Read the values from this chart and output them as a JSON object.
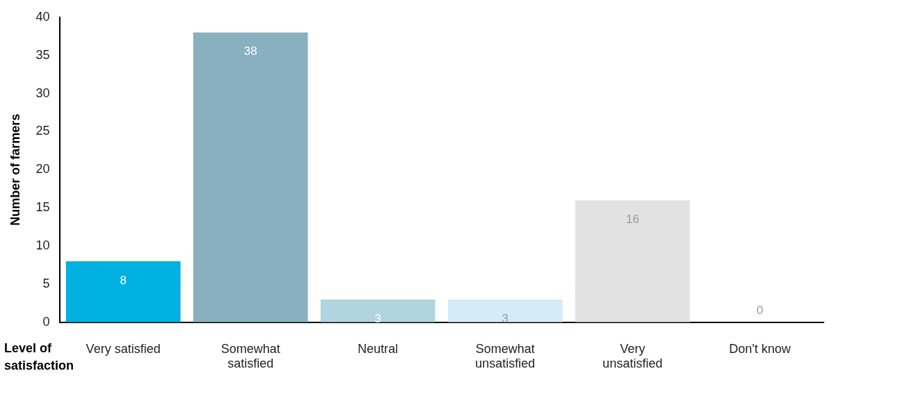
{
  "chart_data": {
    "type": "bar",
    "xlabel": "Level of satisfaction",
    "ylabel": "Number of farmers",
    "categories": [
      "Very satisfied",
      "Somewhat satisfied",
      "Neutral",
      "Somewhat unsatisfied",
      "Very unsatisfied",
      "Don't know"
    ],
    "values": [
      8,
      38,
      3,
      3,
      16,
      0
    ],
    "colors": [
      "#00b0e0",
      "#88b0bf",
      "#b0d4e0",
      "#d4ecf8",
      "#e2e2e2",
      "#e2e2e2"
    ],
    "ylim": [
      0,
      40
    ],
    "yticks": [
      0,
      5,
      10,
      15,
      20,
      25,
      30,
      35,
      40
    ],
    "grid": false,
    "legend": false,
    "data_labels": true
  }
}
